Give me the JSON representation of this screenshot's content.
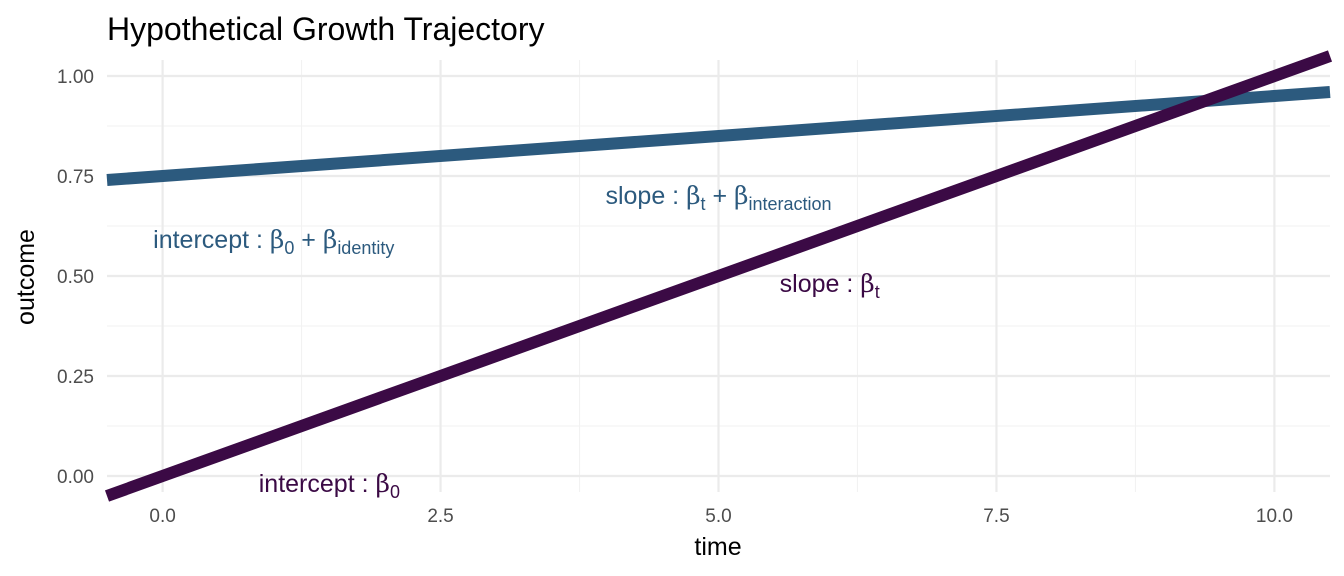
{
  "chart_data": {
    "type": "line",
    "title": "Hypothetical Growth Trajectory",
    "xlabel": "time",
    "ylabel": "outcome",
    "xlim": [
      -0.5,
      10.5
    ],
    "ylim": [
      -0.04,
      1.04
    ],
    "x_ticks": [
      0,
      2.5,
      5,
      7.5,
      10
    ],
    "x_tick_labels": [
      "0.0",
      "2.5",
      "5.0",
      "7.5",
      "10.0"
    ],
    "y_ticks": [
      0,
      0.25,
      0.5,
      0.75,
      1
    ],
    "y_tick_labels": [
      "0.00",
      "0.25",
      "0.50",
      "0.75",
      "1.00"
    ],
    "grid": true,
    "legend": "none",
    "series": [
      {
        "color": "#2c5a7e",
        "x": [
          -0.5,
          10.5
        ],
        "y": [
          0.74,
          0.96
        ]
      },
      {
        "color": "#3b0a45",
        "x": [
          -0.5,
          10.5
        ],
        "y": [
          -0.05,
          1.05
        ]
      }
    ],
    "annotations": [
      {
        "x": 1.0,
        "y": 0.59,
        "color": "#2c5a7e",
        "parts": [
          {
            "t": "intercept",
            "s": "normal"
          },
          {
            "t": " : ",
            "s": "normal"
          },
          {
            "t": "β",
            "s": "greek"
          },
          {
            "t": "0",
            "s": "sub"
          },
          {
            "t": " + ",
            "s": "normal"
          },
          {
            "t": "β",
            "s": "greek"
          },
          {
            "t": "identity",
            "s": "sub"
          }
        ]
      },
      {
        "x": 5.0,
        "y": 0.7,
        "color": "#2c5a7e",
        "parts": [
          {
            "t": "slope",
            "s": "normal"
          },
          {
            "t": " : ",
            "s": "normal"
          },
          {
            "t": "β",
            "s": "greek"
          },
          {
            "t": "t",
            "s": "sub"
          },
          {
            "t": " + ",
            "s": "normal"
          },
          {
            "t": "β",
            "s": "greek"
          },
          {
            "t": "interaction",
            "s": "sub"
          }
        ]
      },
      {
        "x": 6.0,
        "y": 0.48,
        "color": "#3b0a45",
        "parts": [
          {
            "t": "slope",
            "s": "normal"
          },
          {
            "t": " : ",
            "s": "normal"
          },
          {
            "t": "β",
            "s": "greek"
          },
          {
            "t": "t",
            "s": "sub"
          }
        ]
      },
      {
        "x": 1.5,
        "y": -0.02,
        "color": "#3b0a45",
        "parts": [
          {
            "t": "intercept",
            "s": "normal"
          },
          {
            "t": " : ",
            "s": "normal"
          },
          {
            "t": "β",
            "s": "greek"
          },
          {
            "t": "0",
            "s": "sub"
          }
        ]
      }
    ]
  }
}
